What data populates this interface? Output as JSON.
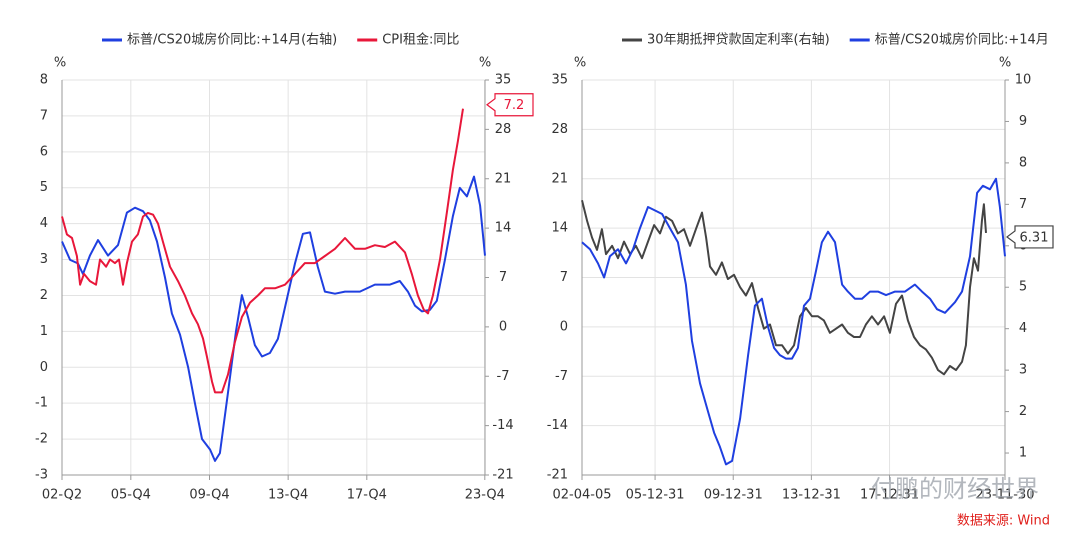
{
  "chart_data": [
    {
      "type": "line",
      "grid": true,
      "ylabel": "%",
      "y2label": "%",
      "xlim": [
        2002.4,
        2023.91
      ],
      "xticks": [
        {
          "value": 2002.4,
          "label": "02-Q2"
        },
        {
          "value": 2005.9,
          "label": "05-Q4"
        },
        {
          "value": 2009.9,
          "label": "09-Q4"
        },
        {
          "value": 2013.9,
          "label": "13-Q4"
        },
        {
          "value": 2017.9,
          "label": "17-Q4"
        },
        {
          "value": 2023.9,
          "label": "23-Q4"
        }
      ],
      "ylim": [
        -3,
        8
      ],
      "yticks": [
        -3,
        -2,
        -1,
        0,
        1,
        2,
        3,
        4,
        5,
        6,
        7,
        8
      ],
      "y2lim": [
        -21,
        35
      ],
      "y2ticks": [
        -21,
        -14,
        -7,
        0,
        7,
        14,
        21,
        28,
        35
      ],
      "series": [
        {
          "name": "标普/CS20城房价同比:+14月(右轴)",
          "color": "#1f3fe0",
          "axis": "y2",
          "x": [
            2002.4,
            2002.81,
            2003.21,
            2003.47,
            2003.82,
            2004.23,
            2004.74,
            2005.25,
            2005.7,
            2006.11,
            2006.52,
            2006.87,
            2007.23,
            2007.64,
            2007.99,
            2008.4,
            2008.81,
            2009.16,
            2009.52,
            2009.93,
            2010.18,
            2010.43,
            2010.84,
            2011.25,
            2011.55,
            2011.86,
            2012.21,
            2012.57,
            2012.97,
            2013.38,
            2013.79,
            2014.25,
            2014.65,
            2015.01,
            2015.41,
            2015.77,
            2016.28,
            2016.79,
            2017.55,
            2018.31,
            2019.08,
            2019.58,
            2019.99,
            2020.35,
            2020.7,
            2021.11,
            2021.46,
            2021.87,
            2022.28,
            2022.63,
            2022.99,
            2023.35,
            2023.66,
            2023.91
          ],
          "values": [
            12.1,
            9.5,
            9.0,
            7.5,
            10.1,
            12.3,
            10.1,
            11.6,
            16.2,
            16.9,
            16.4,
            15.1,
            12.1,
            7.0,
            1.9,
            -1.1,
            -5.7,
            -10.8,
            -15.9,
            -17.4,
            -19.0,
            -17.9,
            -9.3,
            -0.6,
            4.5,
            1.4,
            -2.6,
            -4.2,
            -3.7,
            -1.7,
            3.4,
            9.0,
            13.2,
            13.4,
            8.5,
            5.0,
            4.7,
            5.0,
            5.0,
            6.0,
            6.0,
            6.5,
            5.0,
            3.0,
            2.2,
            2.4,
            3.7,
            9.5,
            15.7,
            19.7,
            18.5,
            21.3,
            17.2,
            10.1
          ]
        },
        {
          "name": "CPI租金:同比",
          "color": "#e8173a",
          "axis": "y",
          "end_label": "7.2",
          "x": [
            2002.4,
            2002.65,
            2002.91,
            2003.16,
            2003.32,
            2003.52,
            2003.82,
            2004.13,
            2004.33,
            2004.64,
            2004.84,
            2005.09,
            2005.3,
            2005.5,
            2005.7,
            2005.96,
            2006.26,
            2006.52,
            2006.77,
            2007.03,
            2007.28,
            2007.53,
            2007.89,
            2008.3,
            2008.65,
            2009.01,
            2009.31,
            2009.57,
            2009.77,
            2010.03,
            2010.18,
            2010.53,
            2010.84,
            2011.19,
            2011.55,
            2011.96,
            2012.36,
            2012.72,
            2013.23,
            2013.74,
            2014.25,
            2014.75,
            2015.26,
            2015.77,
            2016.28,
            2016.79,
            2017.3,
            2017.81,
            2018.31,
            2018.82,
            2019.33,
            2019.84,
            2020.19,
            2020.5,
            2020.8,
            2021.01,
            2021.26,
            2021.62,
            2021.97,
            2022.28,
            2022.53,
            2022.79
          ],
          "values": [
            4.2,
            3.7,
            3.6,
            3.1,
            2.3,
            2.6,
            2.4,
            2.3,
            3.0,
            2.8,
            3.0,
            2.9,
            3.0,
            2.3,
            2.9,
            3.5,
            3.7,
            4.2,
            4.3,
            4.25,
            4.0,
            3.5,
            2.8,
            2.4,
            2.0,
            1.5,
            1.2,
            0.8,
            0.3,
            -0.4,
            -0.7,
            -0.7,
            -0.2,
            0.7,
            1.4,
            1.8,
            2.0,
            2.2,
            2.2,
            2.3,
            2.6,
            2.9,
            2.9,
            3.1,
            3.3,
            3.6,
            3.3,
            3.3,
            3.4,
            3.35,
            3.5,
            3.2,
            2.6,
            2.0,
            1.6,
            1.5,
            2.0,
            3.0,
            4.3,
            5.5,
            6.3,
            7.2
          ]
        }
      ]
    },
    {
      "type": "line",
      "grid": true,
      "ylabel": "%",
      "y2label": "%",
      "xlim": [
        2002.26,
        2023.91
      ],
      "xticks": [
        {
          "value": 2002.26,
          "label": "02-04-05"
        },
        {
          "value": 2006.0,
          "label": "05-12-31"
        },
        {
          "value": 2010.0,
          "label": "09-12-31"
        },
        {
          "value": 2014.0,
          "label": "13-12-31"
        },
        {
          "value": 2018.0,
          "label": "17-12-31"
        },
        {
          "value": 2023.91,
          "label": "23-11-30"
        }
      ],
      "ylim": [
        -21,
        35
      ],
      "yticks": [
        -21,
        -14,
        -7,
        0,
        7,
        14,
        21,
        28,
        35
      ],
      "y2lim": [
        0.47,
        10
      ],
      "y2ticks": [
        1,
        2,
        3,
        4,
        5,
        6,
        7,
        8,
        9,
        10
      ],
      "series": [
        {
          "name": "30年期抵押贷款固定利率(右轴)",
          "color": "#444444",
          "axis": "y2",
          "end_label": "6.31",
          "x": [
            2002.26,
            2002.52,
            2002.77,
            2003.03,
            2003.28,
            2003.49,
            2003.8,
            2004.1,
            2004.41,
            2004.72,
            2005.02,
            2005.33,
            2005.64,
            2005.95,
            2006.25,
            2006.56,
            2006.87,
            2007.17,
            2007.48,
            2007.79,
            2008.09,
            2008.4,
            2008.61,
            2008.81,
            2009.12,
            2009.42,
            2009.73,
            2010.04,
            2010.35,
            2010.65,
            2010.96,
            2011.27,
            2011.57,
            2011.88,
            2012.19,
            2012.5,
            2012.8,
            2013.11,
            2013.42,
            2013.72,
            2014.03,
            2014.34,
            2014.64,
            2014.95,
            2015.26,
            2015.57,
            2015.87,
            2016.18,
            2016.49,
            2016.79,
            2017.1,
            2017.41,
            2017.72,
            2018.02,
            2018.33,
            2018.64,
            2018.94,
            2019.25,
            2019.56,
            2019.86,
            2020.17,
            2020.48,
            2020.79,
            2021.09,
            2021.4,
            2021.71,
            2021.91,
            2022.12,
            2022.32,
            2022.53,
            2022.73,
            2022.83,
            2022.94
          ],
          "values": [
            7.1,
            6.6,
            6.2,
            5.9,
            6.4,
            5.8,
            6.0,
            5.7,
            6.1,
            5.8,
            6.0,
            5.7,
            6.1,
            6.5,
            6.3,
            6.7,
            6.6,
            6.3,
            6.4,
            6.0,
            6.4,
            6.8,
            6.2,
            5.5,
            5.3,
            5.6,
            5.2,
            5.3,
            5.0,
            4.8,
            5.1,
            4.5,
            4.0,
            4.1,
            3.6,
            3.6,
            3.4,
            3.6,
            4.3,
            4.5,
            4.3,
            4.3,
            4.2,
            3.9,
            4.0,
            4.1,
            3.9,
            3.8,
            3.8,
            4.1,
            4.3,
            4.1,
            4.3,
            3.9,
            4.6,
            4.8,
            4.2,
            3.8,
            3.6,
            3.5,
            3.3,
            3.0,
            2.9,
            3.1,
            3.0,
            3.2,
            3.6,
            5.0,
            5.7,
            5.4,
            6.6,
            7.0,
            6.31
          ]
        },
        {
          "name": "标普/CS20城房价同比:+14月",
          "color": "#1f3fe0",
          "axis": "y",
          "x": [
            2002.26,
            2002.67,
            2003.08,
            2003.39,
            2003.69,
            2004.1,
            2004.51,
            2004.87,
            2005.23,
            2005.64,
            2006.0,
            2006.36,
            2006.76,
            2007.17,
            2007.58,
            2007.89,
            2008.3,
            2008.71,
            2009.02,
            2009.32,
            2009.63,
            2009.94,
            2010.35,
            2010.76,
            2011.11,
            2011.47,
            2011.78,
            2012.09,
            2012.39,
            2012.7,
            2013.01,
            2013.31,
            2013.62,
            2013.93,
            2014.24,
            2014.54,
            2014.85,
            2015.21,
            2015.57,
            2015.87,
            2016.23,
            2016.59,
            2017.0,
            2017.41,
            2017.82,
            2018.28,
            2018.79,
            2019.3,
            2019.66,
            2020.07,
            2020.43,
            2020.84,
            2021.35,
            2021.71,
            2022.12,
            2022.48,
            2022.78,
            2023.14,
            2023.45,
            2023.65,
            2023.91
          ],
          "values": [
            12,
            11,
            9,
            7,
            10,
            11,
            9,
            11,
            14,
            17,
            16.5,
            16,
            14,
            12,
            6,
            -2,
            -8,
            -12,
            -15,
            -17,
            -19.5,
            -19,
            -13,
            -4,
            3,
            4,
            0,
            -3,
            -4,
            -4.5,
            -4.5,
            -3,
            3,
            4,
            8,
            12,
            13.5,
            12,
            6,
            5,
            4,
            4,
            5,
            5,
            4.5,
            5,
            5,
            6,
            5,
            4,
            2.5,
            2,
            3.5,
            5,
            10,
            19,
            20,
            19.5,
            21,
            17,
            10
          ]
        }
      ]
    }
  ],
  "watermark": "付鹏的财经世界",
  "source": "数据来源: Wind"
}
